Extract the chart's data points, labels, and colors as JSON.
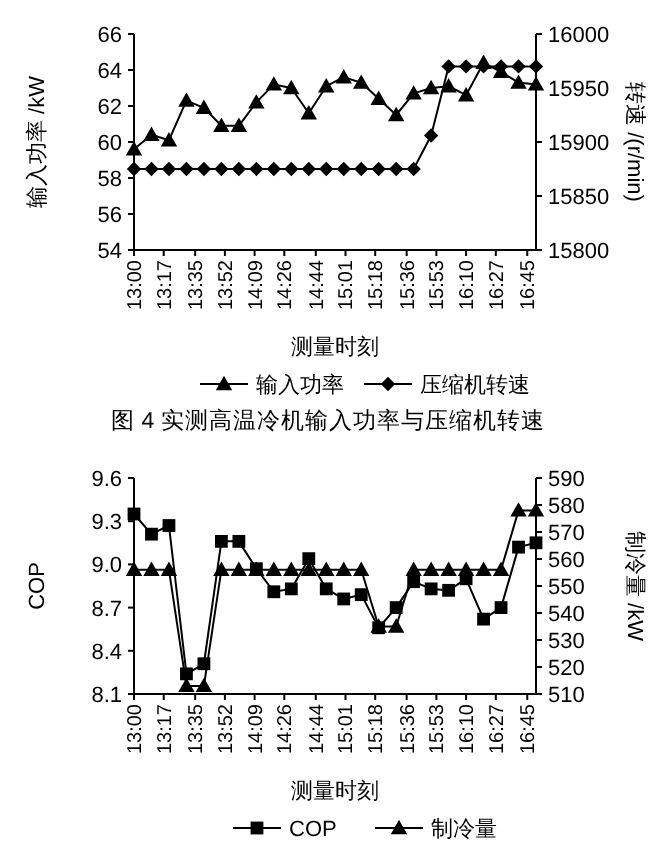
{
  "chart_data": [
    {
      "type": "line",
      "xlabel": "测量时刻",
      "ylabel": "输入功率 /kW",
      "y2label": "转速 /(r/min)",
      "legend": "bottom",
      "line_style": "solid",
      "annotations": [
        "图 4  实测高温冷机输入功率与压缩机转速"
      ],
      "x": [
        13,
        13.1667,
        13.3333,
        13.5,
        13.6667,
        13.8333,
        14,
        14.1667,
        14.3333,
        14.5,
        14.6667,
        14.8333,
        15,
        15.1667,
        15.3333,
        15.5,
        15.6667,
        15.8333,
        16,
        16.1667,
        16.3333,
        16.5,
        16.6667,
        16.8333
      ],
      "xlim": [
        13,
        16.8333
      ],
      "xticks": [
        {
          "value": 13,
          "label": "13:00"
        },
        {
          "value": 13.2833,
          "label": "13:17"
        },
        {
          "value": 13.5833,
          "label": "13:35"
        },
        {
          "value": 13.8667,
          "label": "13:52"
        },
        {
          "value": 14.15,
          "label": "14:09"
        },
        {
          "value": 14.4333,
          "label": "14:26"
        },
        {
          "value": 14.7333,
          "label": "14:44"
        },
        {
          "value": 15.0167,
          "label": "15:01"
        },
        {
          "value": 15.3,
          "label": "15:18"
        },
        {
          "value": 15.6,
          "label": "15:36"
        },
        {
          "value": 15.8833,
          "label": "15:53"
        },
        {
          "value": 16.1667,
          "label": "16:10"
        },
        {
          "value": 16.45,
          "label": "16:27"
        },
        {
          "value": 16.75,
          "label": "16:45"
        }
      ],
      "ylim": [
        54,
        66
      ],
      "yticks": [
        54,
        56,
        58,
        60,
        62,
        64,
        66
      ],
      "y2lim": [
        15800,
        16000
      ],
      "y2ticks": [
        15800,
        15850,
        15900,
        15950,
        16000
      ],
      "series": [
        {
          "name": "输入功率",
          "color": "#000000",
          "marker": "triangle",
          "values": [
            59.6,
            60.4,
            60.1,
            62.3,
            61.9,
            60.9,
            60.9,
            62.2,
            63.2,
            63.0,
            61.6,
            63.1,
            63.6,
            63.3,
            62.4,
            61.5,
            62.7,
            63.0,
            63.1,
            62.6,
            64.4,
            63.9,
            63.3,
            63.2
          ]
        },
        {
          "name": "压缩机转速",
          "color": "#000000",
          "marker": "diamond",
          "axis": "y2",
          "values": [
            15875,
            15875,
            15875,
            15875,
            15875,
            15875,
            15875,
            15875,
            15875,
            15875,
            15875,
            15875,
            15875,
            15875,
            15875,
            15875,
            15875,
            15906,
            15970,
            15970,
            15970,
            15970,
            15970,
            15970
          ]
        }
      ]
    },
    {
      "type": "line",
      "xlabel": "测量时刻",
      "ylabel": "COP",
      "y2label": "制冷量 /kW",
      "legend": "bottom",
      "line_style": "solid",
      "x": [
        13,
        13.1667,
        13.3333,
        13.5,
        13.6667,
        13.8333,
        14,
        14.1667,
        14.3333,
        14.5,
        14.6667,
        14.8333,
        15,
        15.1667,
        15.3333,
        15.5,
        15.6667,
        15.8333,
        16,
        16.1667,
        16.3333,
        16.5,
        16.6667,
        16.8333
      ],
      "xlim": [
        13,
        16.8333
      ],
      "xticks": [
        {
          "value": 13,
          "label": "13:00"
        },
        {
          "value": 13.2833,
          "label": "13:17"
        },
        {
          "value": 13.5833,
          "label": "13:35"
        },
        {
          "value": 13.8667,
          "label": "13:52"
        },
        {
          "value": 14.15,
          "label": "14:09"
        },
        {
          "value": 14.4333,
          "label": "14:26"
        },
        {
          "value": 14.7333,
          "label": "14:44"
        },
        {
          "value": 15.0167,
          "label": "15:01"
        },
        {
          "value": 15.3,
          "label": "15:18"
        },
        {
          "value": 15.6,
          "label": "15:36"
        },
        {
          "value": 15.8833,
          "label": "15:53"
        },
        {
          "value": 16.1667,
          "label": "16:10"
        },
        {
          "value": 16.45,
          "label": "16:27"
        },
        {
          "value": 16.75,
          "label": "16:45"
        }
      ],
      "ylim": [
        8.1,
        9.6
      ],
      "yticks": [
        8.1,
        8.4,
        8.7,
        {
          "value": 9,
          "label": "9.0"
        },
        9.3,
        9.6
      ],
      "y2lim": [
        510,
        590
      ],
      "y2ticks": [
        510,
        520,
        530,
        540,
        550,
        560,
        570,
        580,
        590
      ],
      "series": [
        {
          "name": "COP",
          "color": "#000000",
          "marker": "square",
          "values": [
            9.35,
            9.21,
            9.27,
            8.24,
            8.31,
            9.16,
            9.16,
            8.97,
            8.81,
            8.83,
            9.04,
            8.83,
            8.76,
            8.79,
            8.56,
            8.7,
            8.88,
            8.83,
            8.82,
            8.9,
            8.62,
            8.7,
            9.12,
            9.15
          ]
        },
        {
          "name": "制冷量",
          "color": "#000000",
          "marker": "triangle",
          "axis": "y2",
          "values": [
            556,
            556,
            556,
            513,
            513,
            556,
            556,
            556,
            556,
            556,
            556,
            556,
            556,
            556,
            535,
            535,
            556,
            556,
            556,
            556,
            556,
            556,
            578,
            578
          ]
        }
      ]
    }
  ]
}
